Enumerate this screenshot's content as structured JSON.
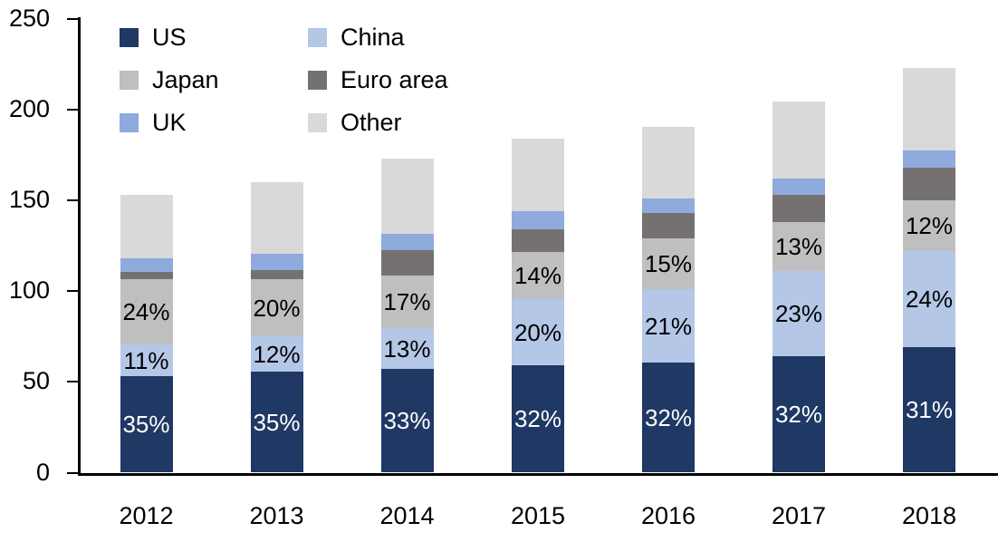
{
  "chart_data": {
    "type": "bar",
    "stacked": true,
    "title": "",
    "xlabel": "",
    "ylabel": "",
    "categories": [
      "2012",
      "2013",
      "2014",
      "2015",
      "2016",
      "2017",
      "2018"
    ],
    "series": [
      {
        "name": "US",
        "color": "#1f3864",
        "values": [
          53,
          55.5,
          57,
          59,
          60.5,
          64,
          69
        ]
      },
      {
        "name": "China",
        "color": "#b4c7e7",
        "values": [
          17.5,
          19.5,
          22.5,
          36.5,
          40.5,
          47,
          53
        ]
      },
      {
        "name": "Japan",
        "color": "#bfbfbf",
        "values": [
          36,
          31.5,
          29,
          26,
          28,
          27,
          28
        ]
      },
      {
        "name": "Euro area",
        "color": "#767171",
        "values": [
          4,
          5,
          14,
          12.5,
          14,
          15,
          18
        ]
      },
      {
        "name": "UK",
        "color": "#8faadc",
        "values": [
          7.5,
          9,
          9,
          10,
          8,
          9,
          9.5
        ]
      },
      {
        "name": "Other",
        "color": "#d9d9d9",
        "values": [
          35,
          39.5,
          41.5,
          40,
          39.5,
          42.5,
          45.5
        ]
      }
    ],
    "totals_approx": [
      153,
      160,
      173,
      184,
      190,
      204,
      223
    ],
    "segment_labels": [
      {
        "series": "US",
        "color": "#ffffff",
        "labels": [
          "35%",
          "35%",
          "33%",
          "32%",
          "32%",
          "32%",
          "31%"
        ]
      },
      {
        "series": "China",
        "color": "#000000",
        "labels": [
          "11%",
          "12%",
          "13%",
          "20%",
          "21%",
          "23%",
          "24%"
        ]
      },
      {
        "series": "Japan",
        "color": "#000000",
        "labels": [
          "24%",
          "20%",
          "17%",
          "14%",
          "15%",
          "13%",
          "12%"
        ]
      }
    ],
    "y_axis": {
      "min": 0,
      "max": 250,
      "tick_step": 50,
      "tick_labels": [
        "0",
        "50",
        "100",
        "150",
        "200",
        "250"
      ]
    },
    "legend": {
      "position": "top-left-inside",
      "columns": 2,
      "entries": [
        {
          "label": "US",
          "color": "#1f3864"
        },
        {
          "label": "China",
          "color": "#b4c7e7"
        },
        {
          "label": "Japan",
          "color": "#bfbfbf"
        },
        {
          "label": "Euro area",
          "color": "#767171"
        },
        {
          "label": "UK",
          "color": "#8faadc"
        },
        {
          "label": "Other",
          "color": "#d9d9d9"
        }
      ]
    },
    "grid": false,
    "axis_color": "#000000"
  }
}
